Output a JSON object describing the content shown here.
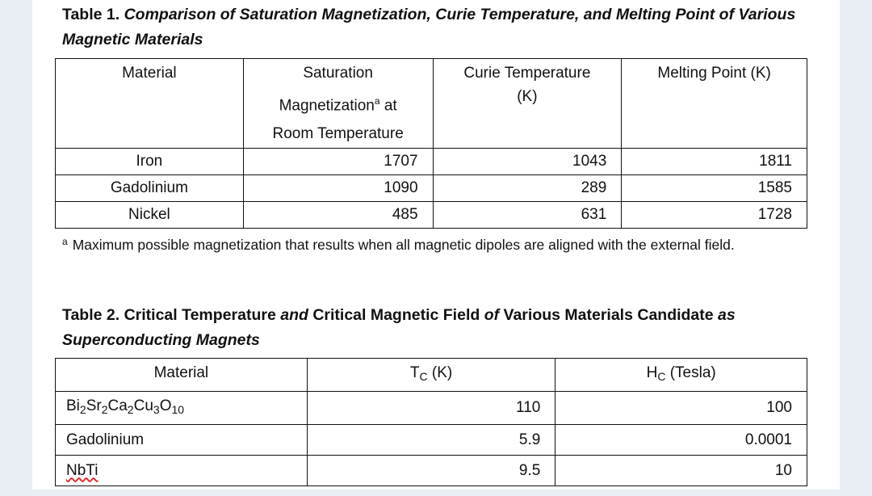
{
  "table1": {
    "caption_label": "Table 1.",
    "caption_title": "Comparison of Saturation Magnetization, Curie Temperature, and Melting Point of Various Magnetic Materials",
    "headers": {
      "material": "Material",
      "saturation_line1": "Saturation",
      "saturation_line2": "Magnetization",
      "saturation_marker": "a",
      "saturation_line2_suffix": " at",
      "saturation_line3": "Room Temperature",
      "curie_line1": "Curie Temperature",
      "curie_line2": "(K)",
      "melting": "Melting Point (K)"
    },
    "rows": [
      {
        "material": "Iron",
        "saturation": "1707",
        "curie": "1043",
        "melting": "1811"
      },
      {
        "material": "Gadolinium",
        "saturation": "1090",
        "curie": "289",
        "melting": "1585"
      },
      {
        "material": "Nickel",
        "saturation": "485",
        "curie": "631",
        "melting": "1728"
      }
    ],
    "footnote_marker": "a",
    "footnote_text": "Maximum possible magnetization that results when all magnetic dipoles are aligned with the external field."
  },
  "table2": {
    "caption_label": "Table 2. Critical Temperature",
    "caption_and": "and",
    "caption_rest": "Critical Magnetic Field",
    "caption_of": "of",
    "caption_tail": "Various Materials Candidate",
    "caption_as": "as",
    "caption_line2": "Superconducting Magnets",
    "headers": {
      "material": "Material",
      "tc_main": "T",
      "tc_sub": "C",
      "tc_unit": " (K)",
      "hc_main": "H",
      "hc_sub": "C",
      "hc_unit": " (Tesla)"
    },
    "rows": [
      {
        "material_parts": [
          "Bi",
          "2",
          "Sr",
          "2",
          "Ca",
          "2",
          "Cu",
          "3",
          "O",
          "10"
        ],
        "tc": "110",
        "hc": "100"
      },
      {
        "material": "Gadolinium",
        "tc": "5.9",
        "hc": "0.0001"
      },
      {
        "material": "NbTi",
        "tc": "9.5",
        "hc": "10"
      }
    ]
  }
}
